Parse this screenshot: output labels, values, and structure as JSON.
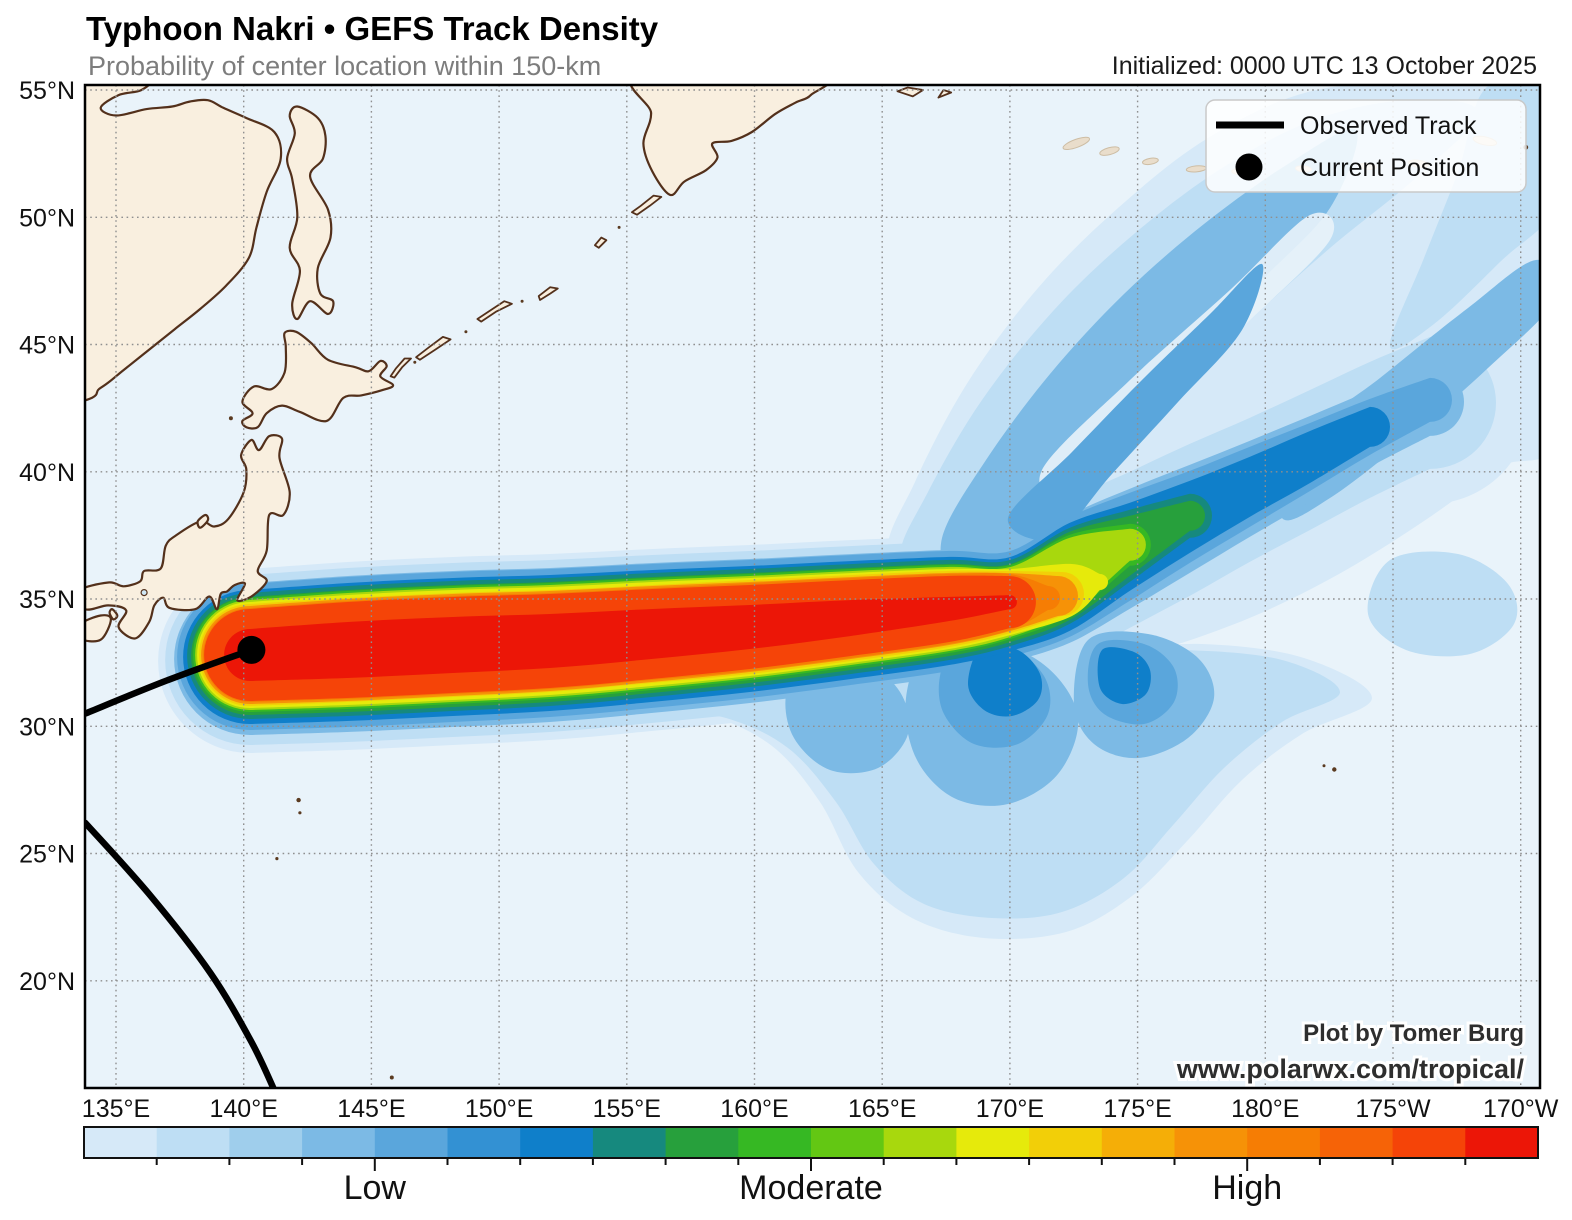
{
  "header": {
    "title": "Typhoon Nakri • GEFS Track Density",
    "subtitle": "Probability of center location within 150-km",
    "initialized": "Initialized: 0000 UTC 13 October 2025"
  },
  "legend": {
    "items": [
      {
        "label": "Observed Track",
        "symbol": "line"
      },
      {
        "label": "Current Position",
        "symbol": "dot"
      }
    ]
  },
  "attribution": {
    "line1": "Plot by Tomer Burg",
    "line2": "www.polarwx.com/tropical/"
  },
  "chart_data": {
    "type": "heatmap",
    "subtype": "tropical-cyclone-track-density",
    "title": "Typhoon Nakri • GEFS Track Density",
    "subtitle": "Probability of center location within 150-km",
    "initialized": "0000 UTC 13 October 2025",
    "projection": "plate-carree",
    "x_axis": {
      "ticks": [
        "135°E",
        "140°E",
        "145°E",
        "150°E",
        "155°E",
        "160°E",
        "165°E",
        "170°E",
        "175°E",
        "180°E",
        "175°W",
        "170°W"
      ],
      "lon_values": [
        135,
        140,
        145,
        150,
        155,
        160,
        165,
        170,
        175,
        180,
        185,
        190
      ]
    },
    "y_axis": {
      "ticks": [
        "55°N",
        "50°N",
        "45°N",
        "40°N",
        "35°N",
        "30°N",
        "25°N",
        "20°N"
      ],
      "lat_values": [
        55,
        50,
        45,
        40,
        35,
        30,
        25,
        20
      ]
    },
    "colorbar": {
      "labels": [
        "Low",
        "Moderate",
        "High"
      ],
      "label_boundary_indices": [
        4,
        10,
        16
      ],
      "colors": [
        "#d6e9f8",
        "#bedef4",
        "#9fceec",
        "#7cbae5",
        "#5aa6dc",
        "#3391d3",
        "#0f7fca",
        "#16897e",
        "#27a03c",
        "#36b823",
        "#63c713",
        "#a8d80d",
        "#e6ea0b",
        "#f2cf08",
        "#f5ae07",
        "#f69207",
        "#f67d04",
        "#f66307",
        "#f54408",
        "#ec1607"
      ]
    },
    "current_position": {
      "lon": 140.3,
      "lat": 33.0
    },
    "observed_track": [
      [
        [
          133.8,
          30.5
        ],
        [
          137.0,
          31.8
        ],
        [
          140.3,
          33.0
        ]
      ],
      [
        [
          133.8,
          26.2
        ],
        [
          136.3,
          23.4
        ],
        [
          138.7,
          20.3
        ],
        [
          140.3,
          17.6
        ],
        [
          141.2,
          15.7
        ]
      ]
    ],
    "density_ridge": [
      [
        140.25,
        32.8
      ],
      [
        144.16,
        33.0
      ],
      [
        148.08,
        33.19
      ],
      [
        151.99,
        33.35
      ],
      [
        155.91,
        33.62
      ],
      [
        159.82,
        33.9
      ],
      [
        163.74,
        34.25
      ],
      [
        167.65,
        34.61
      ],
      [
        170.0,
        34.88
      ],
      [
        172.35,
        35.95
      ],
      [
        174.7,
        37.13
      ],
      [
        177.05,
        38.31
      ],
      [
        179.4,
        39.49
      ],
      [
        181.75,
        40.66
      ],
      [
        184.1,
        41.84
      ],
      [
        186.45,
        42.9
      ]
    ],
    "spread_note": "Ensemble tracks fan out toward the northeast beyond 170°E"
  }
}
